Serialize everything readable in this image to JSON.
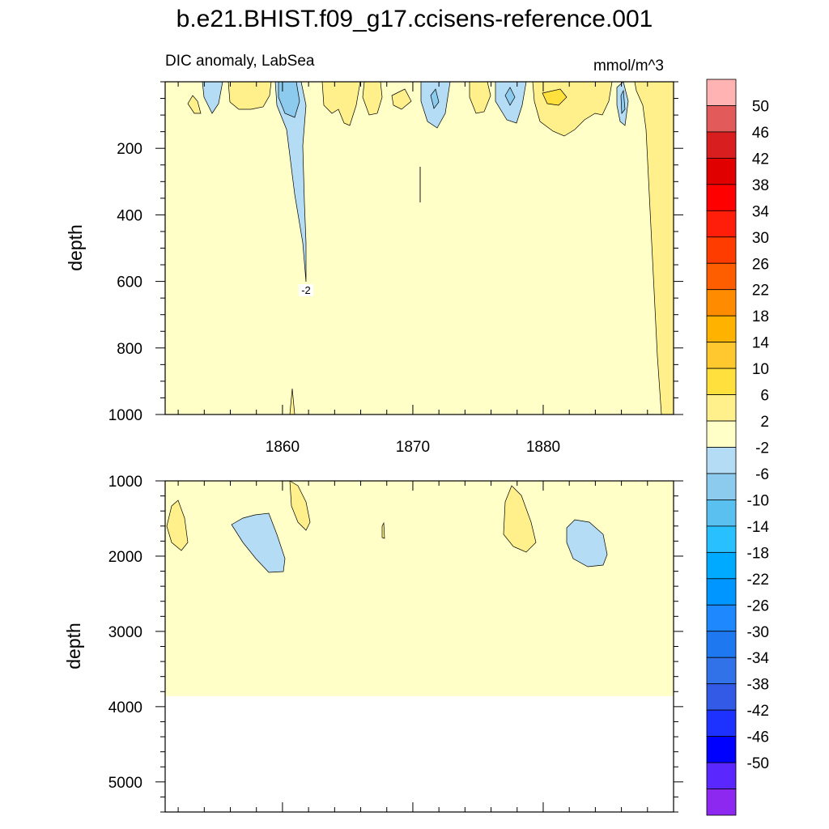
{
  "chart_data": {
    "type": "heatmap",
    "title": "b.e21.BHIST.f09_g17.ccisens-reference.001",
    "subtitle_left": "DIC anomaly, LabSea",
    "subtitle_right": "mmol/m^3",
    "xlabel": "",
    "ylabel": "depth",
    "x_range": [
      1851,
      1890
    ],
    "x_tick_labels": [
      "1860",
      "1870",
      "1880"
    ],
    "x_ticks": [
      1860,
      1870,
      1880
    ],
    "contour_label": "-2",
    "colorbar": {
      "labels": [
        "50",
        "46",
        "42",
        "38",
        "34",
        "30",
        "26",
        "22",
        "18",
        "14",
        "10",
        "6",
        "2",
        "-2",
        "-6",
        "-10",
        "-14",
        "-18",
        "-22",
        "-26",
        "-30",
        "-34",
        "-38",
        "-42",
        "-46",
        "-50"
      ],
      "colors": [
        "#FFB3B3",
        "#E35A5A",
        "#D81E1E",
        "#E00000",
        "#FF0000",
        "#FF1E0A",
        "#FF3C00",
        "#FF5E00",
        "#FF8C00",
        "#FFB300",
        "#FFC82E",
        "#FFE03C",
        "#FFF08C",
        "#FFFFC8",
        "#B4DCF4",
        "#8CCBEE",
        "#5AC0F0",
        "#28C0FF",
        "#00AAFF",
        "#0096FF",
        "#1E88FF",
        "#1E78F0",
        "#3272E8",
        "#325AE6",
        "#1E32FF",
        "#0000FF",
        "#5A28FF",
        "#8C28F0"
      ]
    },
    "panels": [
      {
        "name": "upper",
        "depth_range": [
          0,
          1000
        ],
        "y_tick_labels": [
          "200",
          "400",
          "600",
          "800",
          "1000"
        ],
        "y_ticks": [
          200,
          400,
          600,
          800,
          1000
        ],
        "background_level": "-2 to 2",
        "features": [
          {
            "level": "-6 to -2",
            "color": "#B4DCF4",
            "x": [
              1858.5,
              1862.5
            ],
            "depth": [
              0,
              600
            ]
          },
          {
            "level": "2 to 6",
            "color": "#FFF08C",
            "x": [
              1888,
              1890
            ],
            "depth": [
              0,
              1000
            ]
          }
        ]
      },
      {
        "name": "lower",
        "depth_range": [
          1000,
          5400
        ],
        "y_tick_labels": [
          "1000",
          "2000",
          "3000",
          "4000",
          "5000"
        ],
        "y_ticks": [
          1000,
          2000,
          3000,
          4000,
          5000
        ],
        "data_depth_limit": 3860,
        "features": [
          {
            "level": "2 to 6",
            "color": "#FFF08C",
            "x": [
              1851,
              1852.8
            ],
            "depth": [
              1250,
              1920
            ]
          },
          {
            "level": "-6 to -2",
            "color": "#B4DCF4",
            "x": [
              1856,
              1860
            ],
            "depth": [
              1430,
              2230
            ]
          },
          {
            "level": "2 to 6",
            "color": "#FFF08C",
            "x": [
              1860,
              1862
            ],
            "depth": [
              1000,
              1650
            ]
          },
          {
            "level": "2 to 6",
            "color": "#FFF08C",
            "x": [
              1877,
              1880
            ],
            "depth": [
              1100,
              1950
            ]
          },
          {
            "level": "-6 to -2",
            "color": "#B4DCF4",
            "x": [
              1882,
              1886
            ],
            "depth": [
              1520,
              2140
            ]
          }
        ]
      }
    ]
  }
}
